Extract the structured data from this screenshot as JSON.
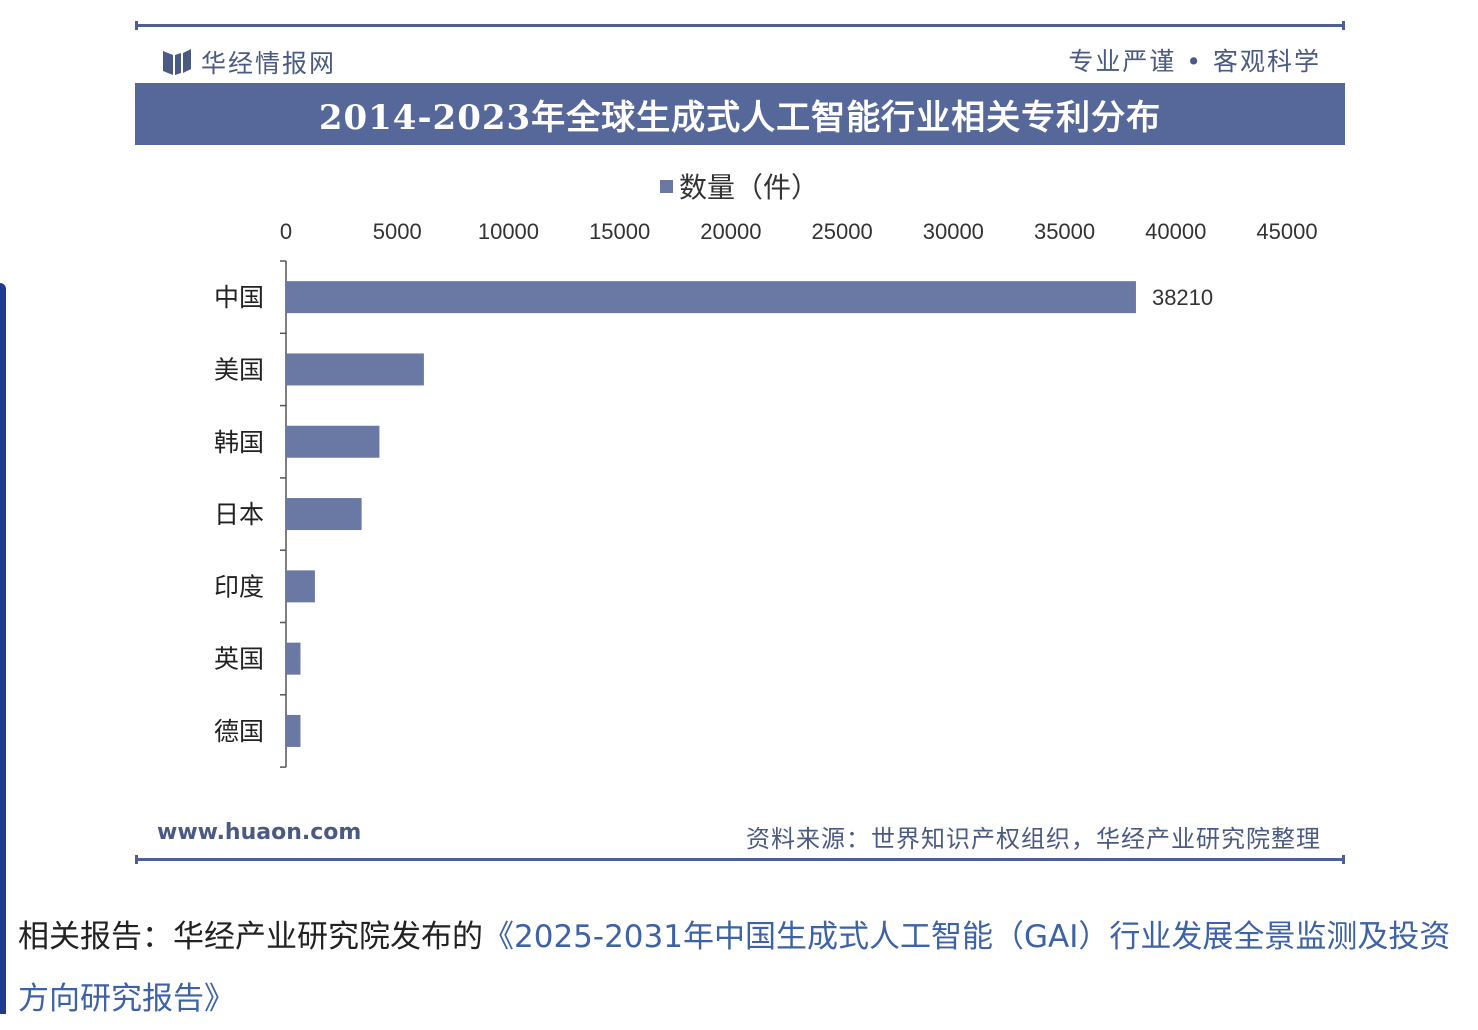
{
  "header": {
    "brand_name": "华经情报网",
    "slogan": "专业严谨 • 客观科学",
    "title": "2014-2023年全球生成式人工智能行业相关专利分布"
  },
  "footer": {
    "url": "www.huaon.com",
    "source": "资料来源：世界知识产权组织，华经产业研究院整理"
  },
  "related": {
    "prefix": "相关报告：华经产业研究院发布的",
    "link_text": "《2025-2031年中国生成式人工智能（GAI）行业发展全景监测及投资方向研究报告》"
  },
  "colors": {
    "bar": "#6a78a4",
    "title_bar": "#56679a",
    "link": "#3d62a6"
  },
  "chart_data": {
    "type": "bar",
    "orientation": "horizontal",
    "title": "2014-2023年全球生成式人工智能行业相关专利分布",
    "categories": [
      "中国",
      "美国",
      "韩国",
      "日本",
      "印度",
      "英国",
      "德国"
    ],
    "series": [
      {
        "name": "数量（件）",
        "values": [
          38210,
          6200,
          4200,
          3400,
          1300,
          650,
          650
        ]
      }
    ],
    "data_labels": [
      "38210",
      null,
      null,
      null,
      null,
      null,
      null
    ],
    "xlim": [
      0,
      45000
    ],
    "x_ticks": [
      "0",
      "5000",
      "10000",
      "15000",
      "20000",
      "25000",
      "30000",
      "35000",
      "40000",
      "45000"
    ],
    "x_tick_values": [
      0,
      5000,
      10000,
      15000,
      20000,
      25000,
      30000,
      35000,
      40000,
      45000
    ],
    "x_axis_position": "top",
    "legend_position": "top-center",
    "grid": false
  }
}
